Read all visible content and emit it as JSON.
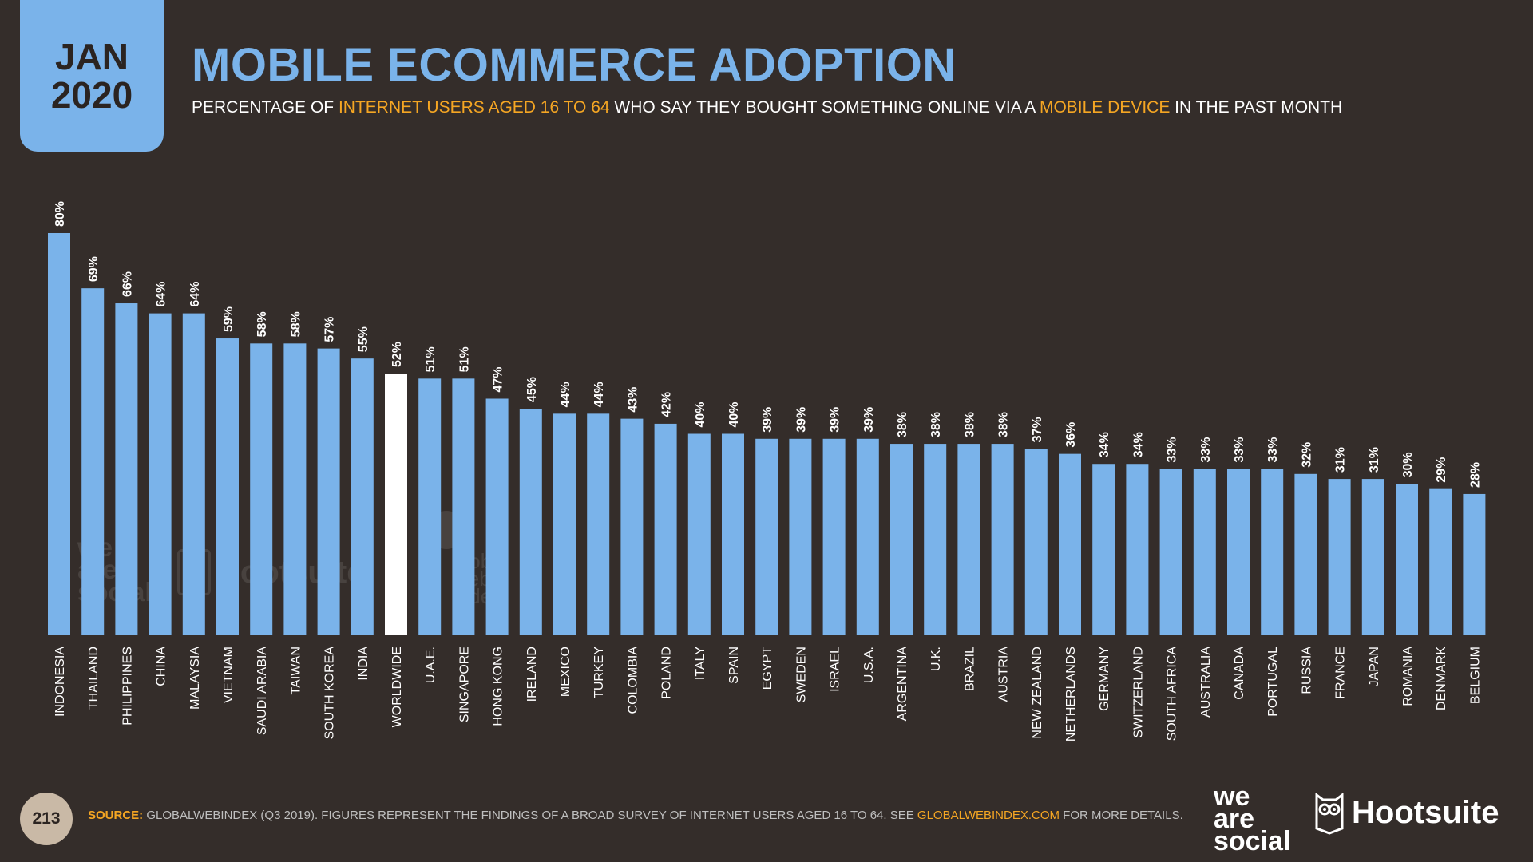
{
  "badge": {
    "month": "JAN",
    "year": "2020"
  },
  "title": "MOBILE ECOMMERCE ADOPTION",
  "subtitle": {
    "p1": "PERCENTAGE OF ",
    "h1": "INTERNET USERS AGED 16 TO 64",
    "p2": " WHO SAY THEY BOUGHT SOMETHING ONLINE VIA A ",
    "h2": "MOBILE DEVICE",
    "p3": " IN THE PAST MONTH"
  },
  "colors": {
    "background": "#342d2a",
    "bar": "#7ab3ea",
    "highlight_bar": "#ffffff",
    "accent": "#f5a623",
    "text": "#ffffff"
  },
  "chart_data": {
    "type": "bar",
    "categories": [
      "INDONESIA",
      "THAILAND",
      "PHILIPPINES",
      "CHINA",
      "MALAYSIA",
      "VIETNAM",
      "SAUDI ARABIA",
      "TAIWAN",
      "SOUTH KOREA",
      "INDIA",
      "WORLDWIDE",
      "U.A.E.",
      "SINGAPORE",
      "HONG KONG",
      "IRELAND",
      "MEXICO",
      "TURKEY",
      "COLOMBIA",
      "POLAND",
      "ITALY",
      "SPAIN",
      "EGYPT",
      "SWEDEN",
      "ISRAEL",
      "U.S.A.",
      "ARGENTINA",
      "U.K.",
      "BRAZIL",
      "AUSTRIA",
      "NEW ZEALAND",
      "NETHERLANDS",
      "GERMANY",
      "SWITZERLAND",
      "SOUTH AFRICA",
      "AUSTRALIA",
      "CANADA",
      "PORTUGAL",
      "RUSSIA",
      "FRANCE",
      "JAPAN",
      "ROMANIA",
      "DENMARK",
      "BELGIUM"
    ],
    "values": [
      80,
      69,
      66,
      64,
      64,
      59,
      58,
      58,
      57,
      55,
      52,
      51,
      51,
      47,
      45,
      44,
      44,
      43,
      42,
      40,
      40,
      39,
      39,
      39,
      39,
      38,
      38,
      38,
      38,
      37,
      36,
      34,
      34,
      33,
      33,
      33,
      33,
      32,
      31,
      31,
      30,
      29,
      28
    ],
    "value_labels": [
      "80%",
      "69%",
      "66%",
      "64%",
      "64%",
      "59%",
      "58%",
      "58%",
      "57%",
      "55%",
      "52%",
      "51%",
      "51%",
      "47%",
      "45%",
      "44%",
      "44%",
      "43%",
      "42%",
      "40%",
      "40%",
      "39%",
      "39%",
      "39%",
      "39%",
      "38%",
      "38%",
      "38%",
      "38%",
      "37%",
      "36%",
      "34%",
      "34%",
      "33%",
      "33%",
      "33%",
      "33%",
      "32%",
      "31%",
      "31%",
      "30%",
      "29%",
      "28%"
    ],
    "highlight": "WORLDWIDE",
    "ylim": [
      0,
      80
    ],
    "grid": false
  },
  "watermarks": {
    "was": [
      "we",
      "are",
      "social"
    ],
    "hootsuite": "Hootsuite",
    "gwi": [
      "global",
      "web",
      "index"
    ]
  },
  "footer": {
    "page": "213",
    "source_label": "SOURCE:",
    "source_text": " GLOBALWEBINDEX (Q3 2019). FIGURES REPRESENT THE FINDINGS OF A BROAD SURVEY OF INTERNET USERS AGED 16 TO 64. SEE ",
    "source_link": "GLOBALWEBINDEX.COM",
    "source_end": " FOR MORE DETAILS."
  },
  "logos": {
    "was_lines": [
      "we",
      "are",
      "social"
    ],
    "hootsuite": "Hootsuite"
  }
}
